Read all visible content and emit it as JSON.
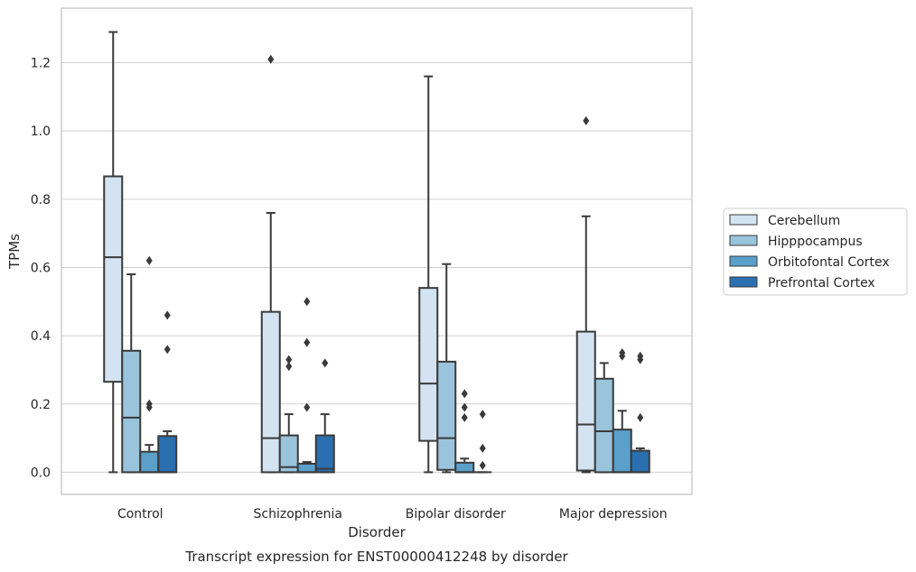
{
  "chart_data": {
    "type": "box",
    "title": "",
    "xlabel": "Disorder",
    "ylabel": "TPMs",
    "caption": "Transcript expression for ENST00000412248 by disorder",
    "categories": [
      "Control",
      "Schizophrenia",
      "Bipolar disorder",
      "Major depression"
    ],
    "ylim": [
      -0.065,
      1.36
    ],
    "yticks": [
      0.0,
      0.2,
      0.4,
      0.6,
      0.8,
      1.0,
      1.2
    ],
    "ytick_labels": [
      "0.0",
      "0.2",
      "0.4",
      "0.6",
      "0.8",
      "1.0",
      "1.2"
    ],
    "grid": "horizontal",
    "legend_position": "right, outside",
    "series": [
      {
        "name": "Cerebellum",
        "color": "#d4e3f1",
        "boxes": [
          {
            "whislo": 0.0,
            "q1": 0.265,
            "med": 0.63,
            "q3": 0.867,
            "whishi": 1.29,
            "fliers": []
          },
          {
            "whislo": 0.0,
            "q1": 0.0,
            "med": 0.1,
            "q3": 0.47,
            "whishi": 0.76,
            "fliers": [
              1.21
            ]
          },
          {
            "whislo": 0.0,
            "q1": 0.092,
            "med": 0.26,
            "q3": 0.54,
            "whishi": 1.16,
            "fliers": []
          },
          {
            "whislo": 0.0,
            "q1": 0.005,
            "med": 0.14,
            "q3": 0.412,
            "whishi": 0.75,
            "fliers": [
              1.03
            ]
          }
        ]
      },
      {
        "name": "Hipppocampus",
        "color": "#9ac3dc",
        "boxes": [
          {
            "whislo": 0.0,
            "q1": 0.0,
            "med": 0.16,
            "q3": 0.356,
            "whishi": 0.58,
            "fliers": []
          },
          {
            "whislo": 0.0,
            "q1": 0.0,
            "med": 0.015,
            "q3": 0.108,
            "whishi": 0.17,
            "fliers": [
              0.31,
              0.33
            ]
          },
          {
            "whislo": 0.0,
            "q1": 0.007,
            "med": 0.1,
            "q3": 0.324,
            "whishi": 0.61,
            "fliers": []
          },
          {
            "whislo": 0.0,
            "q1": 0.0,
            "med": 0.12,
            "q3": 0.274,
            "whishi": 0.32,
            "fliers": []
          }
        ]
      },
      {
        "name": "Orbitofontal Cortex",
        "color": "#5b9fcb",
        "boxes": [
          {
            "whislo": 0.0,
            "q1": 0.0,
            "med": 0.0,
            "q3": 0.06,
            "whishi": 0.08,
            "fliers": [
              0.19,
              0.2,
              0.62
            ]
          },
          {
            "whislo": 0.0,
            "q1": 0.0,
            "med": 0.0,
            "q3": 0.025,
            "whishi": 0.03,
            "fliers": [
              0.19,
              0.38,
              0.5
            ]
          },
          {
            "whislo": 0.0,
            "q1": 0.0,
            "med": 0.0,
            "q3": 0.028,
            "whishi": 0.04,
            "fliers": [
              0.16,
              0.19,
              0.23
            ]
          },
          {
            "whislo": 0.0,
            "q1": 0.0,
            "med": 0.0,
            "q3": 0.125,
            "whishi": 0.18,
            "fliers": [
              0.34,
              0.35
            ]
          }
        ]
      },
      {
        "name": "Prefrontal Cortex",
        "color": "#2a6fb0",
        "boxes": [
          {
            "whislo": 0.0,
            "q1": 0.0,
            "med": 0.0,
            "q3": 0.106,
            "whishi": 0.12,
            "fliers": [
              0.36,
              0.46
            ]
          },
          {
            "whislo": 0.0,
            "q1": 0.0,
            "med": 0.01,
            "q3": 0.108,
            "whishi": 0.17,
            "fliers": [
              0.32
            ]
          },
          {
            "whislo": 0.0,
            "q1": 0.0,
            "med": 0.0,
            "q3": 0.0,
            "whishi": 0.0,
            "fliers": [
              0.02,
              0.07,
              0.17
            ]
          },
          {
            "whislo": 0.0,
            "q1": 0.0,
            "med": 0.0,
            "q3": 0.063,
            "whishi": 0.07,
            "fliers": [
              0.16,
              0.33,
              0.34
            ]
          }
        ]
      }
    ]
  }
}
